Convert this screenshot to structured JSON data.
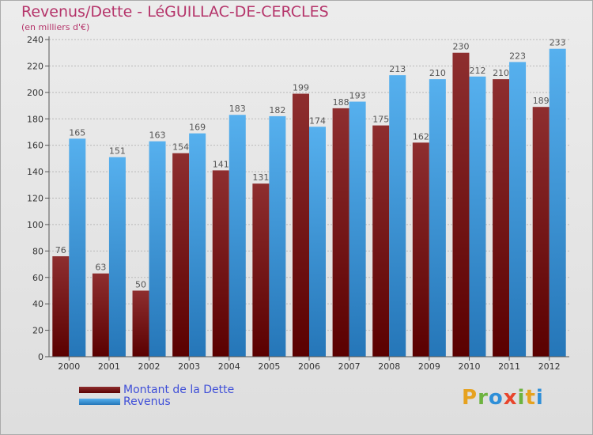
{
  "title": "Revenus/Dette - LéGUILLAC-DE-CERCLES",
  "subtitle": "(en milliers d'€)",
  "logo": {
    "letters": [
      "P",
      "r",
      "o",
      "x",
      "i",
      "t",
      "i"
    ],
    "colors": [
      "#e6a21f",
      "#6db33f",
      "#2f8fd8",
      "#e8452c",
      "#6db33f",
      "#e6a21f",
      "#2f8fd8"
    ]
  },
  "colors": {
    "dette": "#6e0f12",
    "revenus": "#3d95dd",
    "label_text": "#555555",
    "title": "#b5346a"
  },
  "chart_data": {
    "type": "bar",
    "categories": [
      "2000",
      "2001",
      "2002",
      "2003",
      "2004",
      "2005",
      "2006",
      "2007",
      "2008",
      "2009",
      "2010",
      "2011",
      "2012"
    ],
    "series": [
      {
        "name": "Montant de la Dette",
        "values": [
          76,
          63,
          50,
          154,
          141,
          131,
          199,
          188,
          175,
          162,
          230,
          210,
          189
        ]
      },
      {
        "name": "Revenus",
        "values": [
          165,
          151,
          163,
          169,
          183,
          182,
          174,
          193,
          213,
          210,
          212,
          223,
          233
        ]
      }
    ],
    "yticks": [
      0,
      20,
      40,
      60,
      80,
      100,
      120,
      140,
      160,
      180,
      200,
      220,
      240
    ],
    "ylim": [
      0,
      240
    ],
    "grid": true,
    "legend": "bottom-left"
  }
}
